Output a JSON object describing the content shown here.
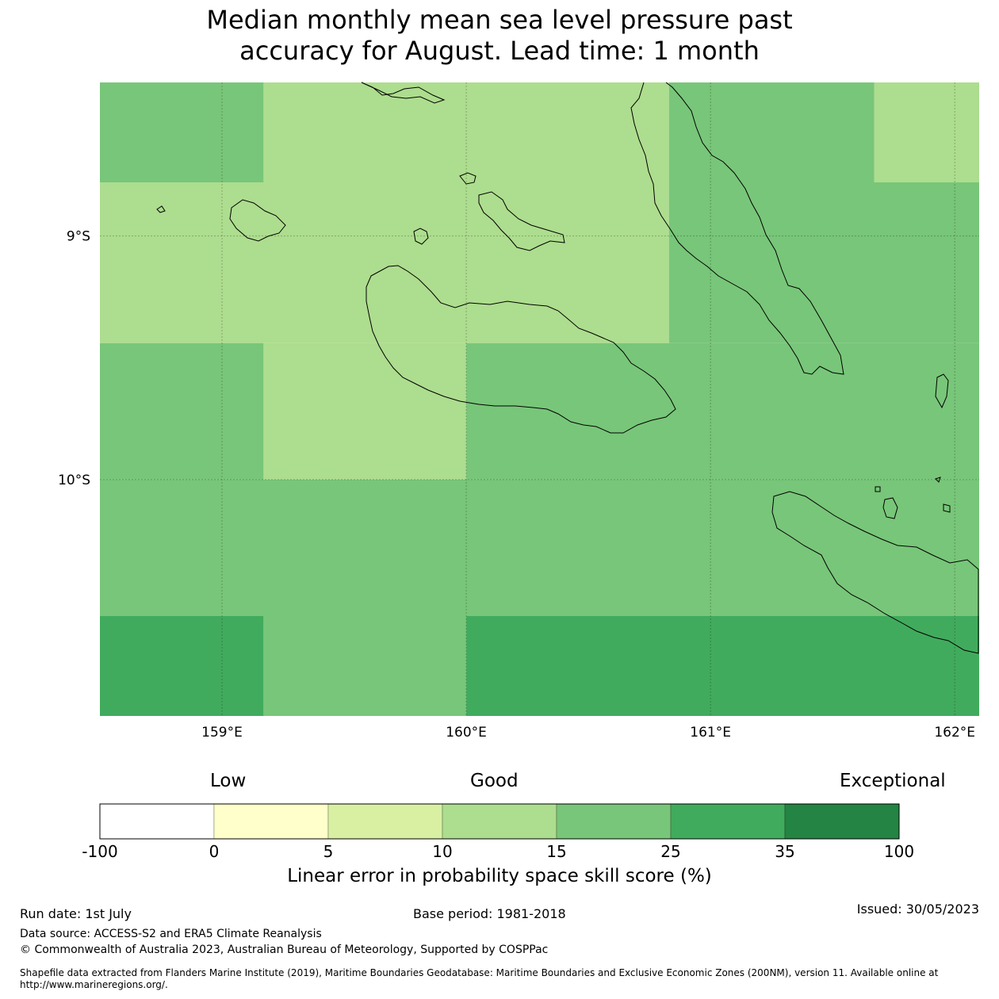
{
  "title": {
    "line1": "Median monthly mean sea level pressure past",
    "line2": "accuracy for August. Lead time: 1 month"
  },
  "map": {
    "lon_range": [
      158.5,
      162.1
    ],
    "lat_range": [
      -10.97,
      -8.37
    ],
    "lon_ticks": [
      {
        "value": 159,
        "label": "159°E"
      },
      {
        "value": 160,
        "label": "160°E"
      },
      {
        "value": 161,
        "label": "161°E"
      },
      {
        "value": 162,
        "label": "162°E"
      }
    ],
    "lat_ticks": [
      {
        "value": -9,
        "label": "9°S"
      },
      {
        "value": -10,
        "label": "10°S"
      }
    ],
    "grid_lines": true,
    "cells": [
      {
        "lon": [
          158.5,
          159.17
        ],
        "lat": [
          -8.78,
          -8.37
        ],
        "color": "#78c679"
      },
      {
        "lon": [
          159.17,
          160.83
        ],
        "lat": [
          -8.78,
          -8.37
        ],
        "color": "#addd8e"
      },
      {
        "lon": [
          160.83,
          161.67
        ],
        "lat": [
          -8.78,
          -8.37
        ],
        "color": "#78c679"
      },
      {
        "lon": [
          161.67,
          162.1
        ],
        "lat": [
          -8.78,
          -8.37
        ],
        "color": "#addd8e"
      },
      {
        "lon": [
          158.5,
          160.83
        ],
        "lat": [
          -9.44,
          -8.78
        ],
        "color": "#addd8e"
      },
      {
        "lon": [
          160.83,
          162.1
        ],
        "lat": [
          -9.44,
          -8.78
        ],
        "color": "#78c679"
      },
      {
        "lon": [
          158.5,
          159.17
        ],
        "lat": [
          -10.0,
          -9.44
        ],
        "color": "#78c679"
      },
      {
        "lon": [
          159.17,
          160.0
        ],
        "lat": [
          -10.0,
          -9.44
        ],
        "color": "#addd8e"
      },
      {
        "lon": [
          160.0,
          162.1
        ],
        "lat": [
          -10.0,
          -9.44
        ],
        "color": "#78c679"
      },
      {
        "lon": [
          158.5,
          162.1
        ],
        "lat": [
          -10.56,
          -10.0
        ],
        "color": "#78c679"
      },
      {
        "lon": [
          158.5,
          159.17
        ],
        "lat": [
          -10.97,
          -10.56
        ],
        "color": "#41ab5d"
      },
      {
        "lon": [
          159.17,
          160.0
        ],
        "lat": [
          -10.97,
          -10.56
        ],
        "color": "#78c679"
      },
      {
        "lon": [
          160.0,
          162.1
        ],
        "lat": [
          -10.97,
          -10.56
        ],
        "color": "#41ab5d"
      }
    ],
    "coastline_color": "#000000"
  },
  "colorbar": {
    "category_labels": {
      "low": "Low",
      "good": "Good",
      "exceptional": "Exceptional"
    },
    "bins": [
      {
        "from": "-100",
        "to": "0",
        "color": "#ffffff"
      },
      {
        "from": "0",
        "to": "5",
        "color": "#ffffcc"
      },
      {
        "from": "5",
        "to": "10",
        "color": "#d9f0a3"
      },
      {
        "from": "10",
        "to": "15",
        "color": "#addd8e"
      },
      {
        "from": "15",
        "to": "25",
        "color": "#78c679"
      },
      {
        "from": "25",
        "to": "35",
        "color": "#41ab5d"
      },
      {
        "from": "35",
        "to": "100",
        "color": "#238443"
      }
    ],
    "ticks": [
      "-100",
      "0",
      "5",
      "10",
      "15",
      "25",
      "35",
      "100"
    ],
    "title": "Linear error in probability space skill score (%)"
  },
  "footer": {
    "run_date": "Run date: 1st July",
    "base_period": "Base period: 1981-2018",
    "issued": "Issued: 30/05/2023",
    "data_source": "Data source: ACCESS-S2 and ERA5 Climate Reanalysis",
    "copyright": "© Commonwealth of Australia 2023, Australian Bureau of Meteorology, Supported by COSPPac",
    "shapefile": "Shapefile data extracted from Flanders Marine Institute (2019), Maritime Boundaries Geodatabase: Maritime Boundaries and Exclusive Economic Zones (200NM), version 11. Available online at http://www.marineregions.org/."
  }
}
